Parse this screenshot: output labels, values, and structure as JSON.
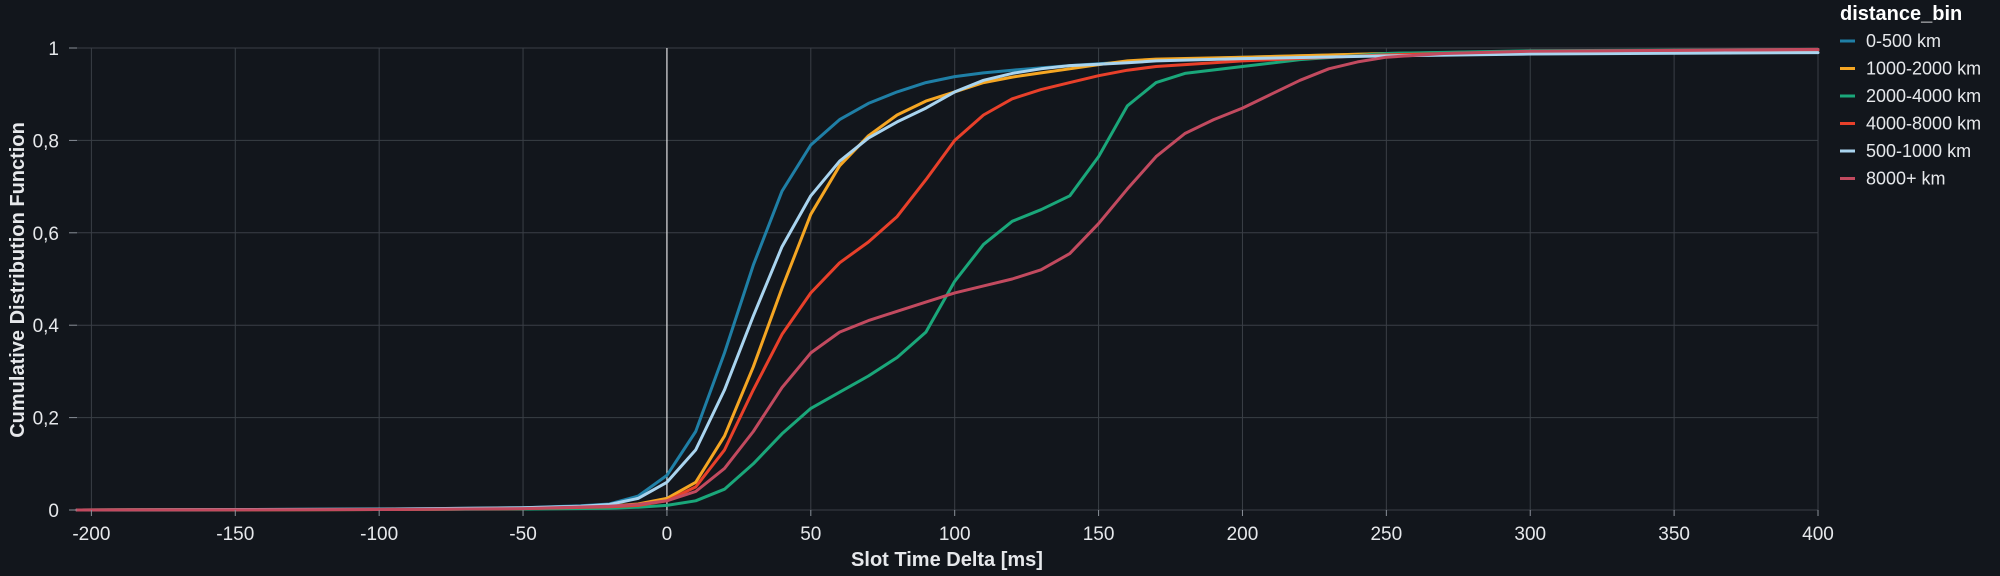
{
  "chart_data": {
    "type": "line",
    "title": "",
    "xlabel": "Slot Time Delta [ms]",
    "ylabel": "Cumulative Distribution Function",
    "xlim": [
      -205,
      400
    ],
    "ylim": [
      0,
      1
    ],
    "x_ticks": [
      -200,
      -150,
      -100,
      -50,
      0,
      50,
      100,
      150,
      200,
      250,
      300,
      350,
      400
    ],
    "x_tick_labels": [
      "-200",
      "-150",
      "-100",
      "-50",
      "0",
      "50",
      "100",
      "150",
      "200",
      "250",
      "300",
      "350",
      "400"
    ],
    "y_ticks": [
      0,
      0.2,
      0.4,
      0.6,
      0.8,
      1
    ],
    "y_tick_labels": [
      "0",
      "0,2",
      "0,4",
      "0,6",
      "0,8",
      "1"
    ],
    "grid": true,
    "reference_line_x": 0,
    "reference_line_color": "#ffffff",
    "legend": {
      "title": "distance_bin",
      "placement": "right"
    },
    "series": [
      {
        "name": "0-500 km",
        "color": "#1f7fa6",
        "x": [
          -205,
          -100,
          -50,
          -30,
          -20,
          -10,
          0,
          10,
          20,
          30,
          40,
          50,
          60,
          70,
          80,
          90,
          100,
          110,
          120,
          130,
          140,
          150,
          160,
          170,
          180,
          200,
          250,
          300,
          400
        ],
        "y": [
          0,
          0.002,
          0.005,
          0.009,
          0.013,
          0.03,
          0.075,
          0.17,
          0.34,
          0.53,
          0.69,
          0.79,
          0.845,
          0.88,
          0.905,
          0.925,
          0.938,
          0.946,
          0.952,
          0.957,
          0.962,
          0.966,
          0.97,
          0.973,
          0.976,
          0.98,
          0.988,
          0.993,
          0.996
        ]
      },
      {
        "name": "1000-2000 km",
        "color": "#f5a623",
        "x": [
          -205,
          -100,
          -50,
          -20,
          -10,
          0,
          10,
          20,
          30,
          40,
          50,
          60,
          70,
          80,
          90,
          100,
          110,
          120,
          130,
          140,
          150,
          160,
          170,
          200,
          250,
          300,
          400
        ],
        "y": [
          0,
          0.001,
          0.003,
          0.008,
          0.013,
          0.025,
          0.06,
          0.16,
          0.31,
          0.48,
          0.64,
          0.745,
          0.81,
          0.855,
          0.885,
          0.905,
          0.925,
          0.937,
          0.946,
          0.955,
          0.964,
          0.972,
          0.976,
          0.98,
          0.988,
          0.992,
          0.996
        ]
      },
      {
        "name": "2000-4000 km",
        "color": "#1aa77a",
        "x": [
          -205,
          -100,
          -50,
          -20,
          -10,
          0,
          10,
          20,
          30,
          40,
          50,
          60,
          70,
          80,
          90,
          100,
          110,
          120,
          130,
          140,
          150,
          160,
          170,
          180,
          200,
          220,
          250,
          300,
          400
        ],
        "y": [
          0,
          0.001,
          0.002,
          0.004,
          0.006,
          0.01,
          0.02,
          0.045,
          0.1,
          0.165,
          0.22,
          0.255,
          0.29,
          0.33,
          0.385,
          0.495,
          0.575,
          0.625,
          0.65,
          0.68,
          0.765,
          0.875,
          0.925,
          0.945,
          0.96,
          0.975,
          0.988,
          0.994,
          0.997
        ]
      },
      {
        "name": "4000-8000 km",
        "color": "#e8402a",
        "x": [
          -205,
          -100,
          -50,
          -20,
          -10,
          0,
          10,
          20,
          30,
          40,
          50,
          60,
          70,
          80,
          90,
          100,
          110,
          120,
          130,
          140,
          150,
          160,
          170,
          200,
          250,
          300,
          400
        ],
        "y": [
          0,
          0.001,
          0.003,
          0.007,
          0.01,
          0.02,
          0.05,
          0.13,
          0.26,
          0.38,
          0.47,
          0.535,
          0.58,
          0.635,
          0.715,
          0.8,
          0.855,
          0.89,
          0.91,
          0.925,
          0.94,
          0.952,
          0.96,
          0.972,
          0.985,
          0.992,
          0.996
        ]
      },
      {
        "name": "500-1000 km",
        "color": "#a9d4ef",
        "x": [
          -205,
          -100,
          -50,
          -30,
          -20,
          -10,
          0,
          10,
          20,
          30,
          40,
          50,
          60,
          70,
          80,
          90,
          100,
          110,
          120,
          130,
          140,
          150,
          160,
          170,
          200,
          250,
          300,
          400
        ],
        "y": [
          0,
          0.002,
          0.005,
          0.008,
          0.012,
          0.025,
          0.06,
          0.13,
          0.26,
          0.42,
          0.57,
          0.68,
          0.755,
          0.805,
          0.84,
          0.87,
          0.905,
          0.93,
          0.945,
          0.955,
          0.962,
          0.965,
          0.968,
          0.972,
          0.977,
          0.983,
          0.987,
          0.99
        ]
      },
      {
        "name": "8000+ km",
        "color": "#c24a5f",
        "x": [
          -205,
          -100,
          -50,
          -20,
          -10,
          0,
          10,
          20,
          30,
          40,
          50,
          60,
          70,
          80,
          90,
          100,
          110,
          120,
          130,
          140,
          150,
          160,
          170,
          180,
          190,
          200,
          210,
          220,
          230,
          240,
          250,
          270,
          300,
          400
        ],
        "y": [
          0,
          0.001,
          0.003,
          0.008,
          0.012,
          0.02,
          0.04,
          0.09,
          0.17,
          0.265,
          0.34,
          0.385,
          0.41,
          0.43,
          0.45,
          0.47,
          0.485,
          0.5,
          0.52,
          0.555,
          0.62,
          0.695,
          0.765,
          0.815,
          0.845,
          0.87,
          0.9,
          0.93,
          0.955,
          0.97,
          0.98,
          0.988,
          0.993,
          0.997
        ]
      }
    ]
  }
}
